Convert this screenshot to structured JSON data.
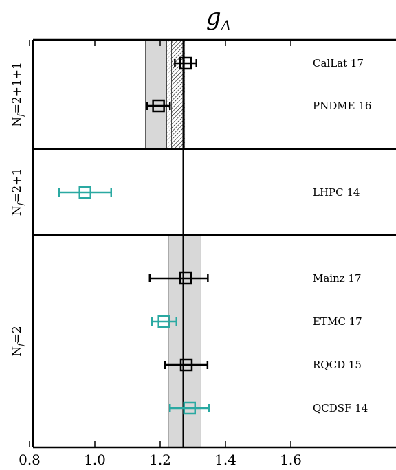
{
  "chart_data": {
    "type": "scatter",
    "title_symbol": "g",
    "title_subscript": "A",
    "xlim": [
      0.8,
      2.0
    ],
    "xticks": [
      "0.8",
      "1.0",
      "1.2",
      "1.4",
      "1.6"
    ],
    "xtick_values": [
      0.8,
      1.0,
      1.2,
      1.4,
      1.6
    ],
    "reference_line": 1.271,
    "grid": false,
    "groups": [
      {
        "label": "N_f=2+1+1",
        "label_main": "N",
        "label_sub": "f",
        "label_rest": "=2+1+1",
        "bands": [
          {
            "x0": 1.155,
            "x1": 1.22,
            "style": "gray"
          },
          {
            "x0": 1.22,
            "x1": 1.235,
            "style": "hatch-light"
          },
          {
            "x0": 1.235,
            "x1": 1.275,
            "style": "hatch-dense"
          }
        ],
        "points": [
          {
            "name": "CalLat 17",
            "value": 1.278,
            "xerr_low": 1.245,
            "xerr_high": 1.311,
            "color": "#000000"
          },
          {
            "name": "PNDME 16",
            "value": 1.195,
            "xerr_low": 1.16,
            "xerr_high": 1.23,
            "color": "#000000"
          }
        ]
      },
      {
        "label": "N_f=2+1",
        "label_main": "N",
        "label_sub": "f",
        "label_rest": "=2+1",
        "bands": [],
        "points": [
          {
            "name": "LHPC 14",
            "value": 0.97,
            "xerr_low": 0.89,
            "xerr_high": 1.05,
            "color": "#2aa9a2"
          }
        ]
      },
      {
        "label": "N_f=2",
        "label_main": "N",
        "label_sub": "f",
        "label_rest": "=2",
        "bands": [
          {
            "x0": 1.225,
            "x1": 1.325,
            "style": "gray"
          }
        ],
        "points": [
          {
            "name": "Mainz 17",
            "value": 1.278,
            "xerr_low": 1.168,
            "xerr_high": 1.346,
            "color": "#000000"
          },
          {
            "name": "ETMC 17",
            "value": 1.212,
            "xerr_low": 1.175,
            "xerr_high": 1.25,
            "color": "#2aa9a2"
          },
          {
            "name": "RQCD 15",
            "value": 1.28,
            "xerr_low": 1.215,
            "xerr_high": 1.345,
            "color": "#000000"
          },
          {
            "name": "QCDSF 14",
            "value": 1.29,
            "xerr_low": 1.23,
            "xerr_high": 1.35,
            "color": "#2aa9a2"
          }
        ]
      }
    ]
  }
}
